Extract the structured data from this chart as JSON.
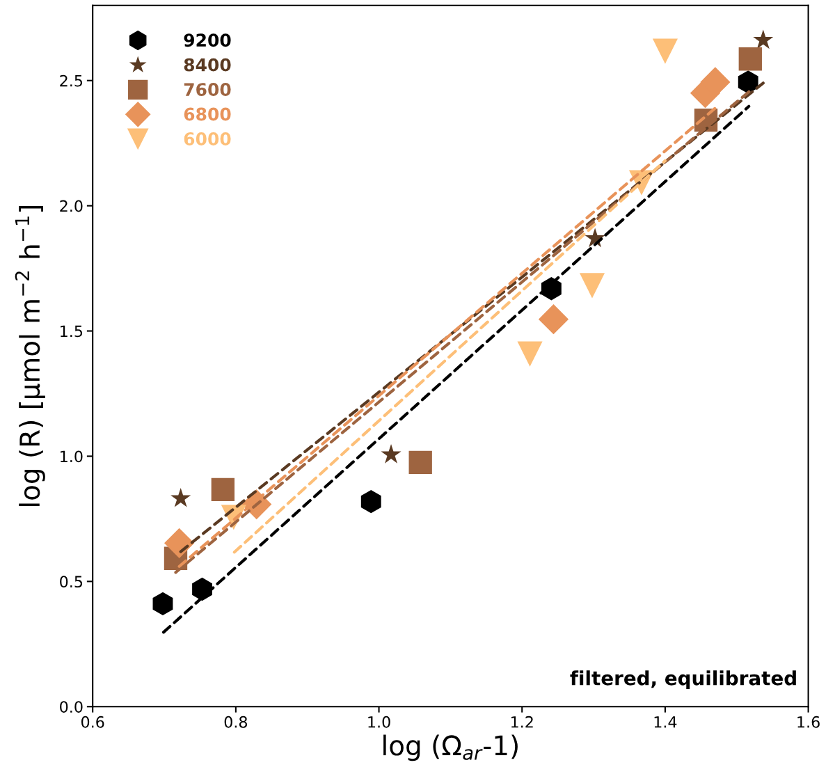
{
  "chart_data": {
    "type": "scatter",
    "xlabel": "log (Ω$_{ar}$-1)",
    "ylabel": "log (R) [µmol m$^{−2}$ h$^{−1}$]",
    "xlim": [
      0.6,
      1.6
    ],
    "ylim": [
      0.0,
      2.8
    ],
    "xticks": [
      {
        "value": 0.6,
        "label": "0.6"
      },
      {
        "value": 0.8,
        "label": "0.8"
      },
      {
        "value": 1.0,
        "label": "1.0"
      },
      {
        "value": 1.2,
        "label": "1.2"
      },
      {
        "value": 1.4,
        "label": "1.4"
      },
      {
        "value": 1.6,
        "label": "1.6"
      }
    ],
    "yticks": [
      {
        "value": 0.0,
        "label": "0.0"
      },
      {
        "value": 0.5,
        "label": "0.5"
      },
      {
        "value": 1.0,
        "label": "1.0"
      },
      {
        "value": 1.5,
        "label": "1.5"
      },
      {
        "value": 2.0,
        "label": "2.0"
      },
      {
        "value": 2.5,
        "label": "2.5"
      }
    ],
    "grid": false,
    "legend": "top left",
    "annotations": [
      "filtered, equilibrated"
    ],
    "series": [
      {
        "name": "9200",
        "color": "#000000",
        "x": [
          0.698,
          0.753,
          0.989,
          1.241,
          1.516
        ],
        "values": [
          0.411,
          0.469,
          0.819,
          1.669,
          2.494
        ]
      },
      {
        "name": "8400",
        "color": "#5a3a22",
        "marker": "star",
        "x": [
          0.723,
          1.017,
          1.302,
          1.537
        ],
        "values": [
          0.831,
          1.006,
          1.869,
          2.661
        ]
      },
      {
        "name": "7600",
        "color": "#9e6440",
        "marker": "square",
        "x": [
          0.716,
          0.782,
          1.058,
          1.457,
          1.519
        ],
        "values": [
          0.592,
          0.867,
          0.975,
          2.342,
          2.586
        ]
      },
      {
        "name": "6800",
        "color": "#e8935a",
        "marker": "diamond",
        "x": [
          0.721,
          0.829,
          1.244,
          1.456,
          1.47
        ],
        "values": [
          0.653,
          0.808,
          1.547,
          2.45,
          2.494
        ]
      },
      {
        "name": "6000",
        "color": "#fdbf78",
        "marker": "triangle_down",
        "x": [
          0.797,
          1.211,
          1.298,
          1.367,
          1.4
        ],
        "values": [
          0.756,
          1.408,
          1.681,
          2.092,
          2.617
        ]
      },
      {
        "type": "line",
        "line_style": "dashed",
        "color": "#000000",
        "x": [
          0.699,
          1.517
        ],
        "values": [
          0.297,
          2.397
        ]
      },
      {
        "type": "line",
        "line_style": "dashed",
        "color": "#5a3a22",
        "x": [
          0.723,
          1.537
        ],
        "values": [
          0.619,
          2.49
        ]
      },
      {
        "type": "line",
        "line_style": "dashed",
        "color": "#9e6440",
        "x": [
          0.716,
          1.519
        ],
        "values": [
          0.536,
          2.46
        ]
      },
      {
        "type": "line",
        "line_style": "dashed",
        "color": "#e8935a",
        "x": [
          0.721,
          1.47
        ],
        "values": [
          0.56,
          2.39
        ]
      },
      {
        "type": "line",
        "line_style": "dashed",
        "color": "#fdbf78",
        "x": [
          0.798,
          1.4
        ],
        "values": [
          0.617,
          2.18
        ]
      }
    ]
  }
}
